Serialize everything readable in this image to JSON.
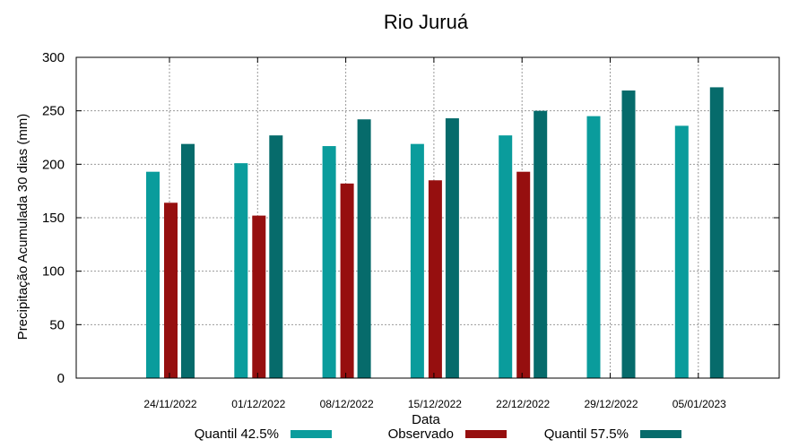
{
  "chart_data": {
    "type": "bar",
    "title": "Rio Juruá",
    "xlabel": "Data",
    "ylabel": "Precipitação Acumulada 30 dias (mm)",
    "ylim": [
      0,
      300
    ],
    "yticks": [
      0,
      50,
      100,
      150,
      200,
      250,
      300
    ],
    "grid": true,
    "legend_position": "bottom",
    "categories": [
      "24/11/2022",
      "01/12/2022",
      "08/12/2022",
      "15/12/2022",
      "22/12/2022",
      "29/12/2022",
      "05/01/2023"
    ],
    "series": [
      {
        "name": "Quantil 42.5%",
        "color": "#0a9c9c",
        "values": [
          193,
          201,
          217,
          219,
          227,
          245,
          236
        ]
      },
      {
        "name": "Observado",
        "color": "#960f0f",
        "values": [
          164,
          152,
          182,
          185,
          193,
          null,
          null
        ]
      },
      {
        "name": "Quantil 57.5%",
        "color": "#066b6b",
        "values": [
          219,
          227,
          242,
          243,
          250,
          269,
          272
        ]
      }
    ]
  }
}
